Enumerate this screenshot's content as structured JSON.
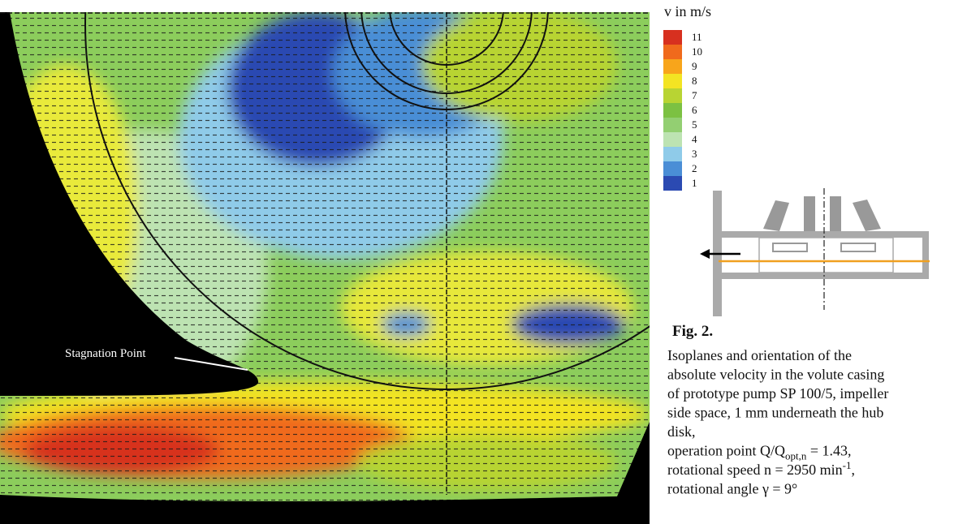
{
  "figure": {
    "colorbar": {
      "title": "v in m/s",
      "levels": [
        {
          "label": 11,
          "color": "#d7301f"
        },
        {
          "label": 10,
          "color": "#f06a1c"
        },
        {
          "label": 9,
          "color": "#f8a51b"
        },
        {
          "label": 8,
          "color": "#f3e423"
        },
        {
          "label": 7,
          "color": "#b8d433"
        },
        {
          "label": 6,
          "color": "#7cc142"
        },
        {
          "label": 5,
          "color": "#93cf72"
        },
        {
          "label": 4,
          "color": "#bde3b2"
        },
        {
          "label": 3,
          "color": "#8fcbe9"
        },
        {
          "label": 2,
          "color": "#4a8ed6"
        },
        {
          "label": 1,
          "color": "#2b4ab2"
        }
      ]
    },
    "annotation": "Stagnation Point",
    "caption": {
      "label": "Fig. 2.",
      "lines": [
        "Isoplanes and orientation of the",
        "absolute velocity in the volute casing",
        "of prototype pump SP 100/5, impeller",
        "side space, 1 mm underneath the hub",
        "disk,",
        {
          "text": "operation point Q/Q",
          "sub": "opt,n",
          "tail": " = 1.43,"
        },
        {
          "text": "rotational speed n = 2950 min",
          "sup": "-1",
          "tail": ","
        },
        "rotational angle γ = 9°"
      ]
    }
  }
}
